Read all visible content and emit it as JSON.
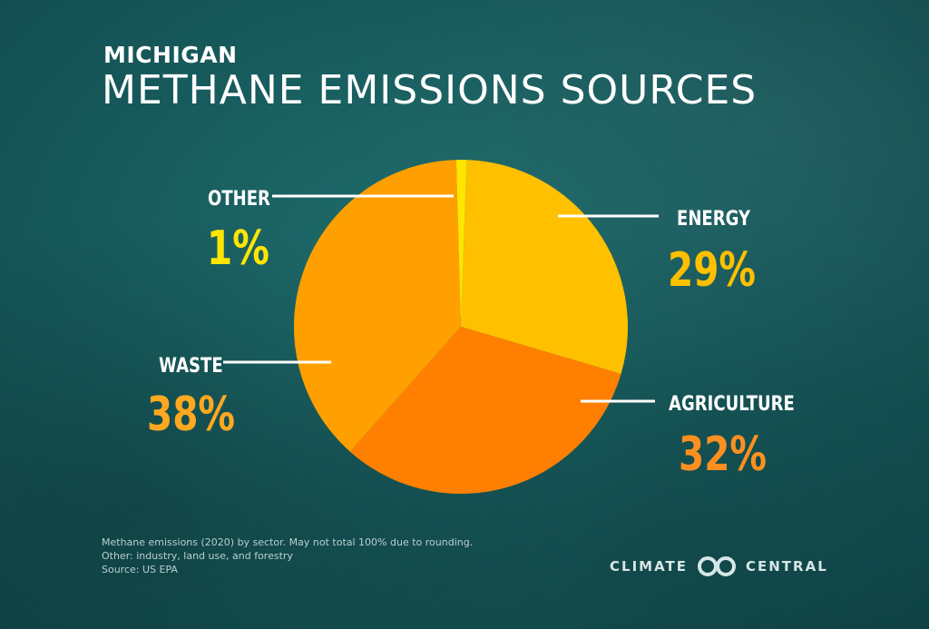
{
  "header": {
    "subtitle": "MICHIGAN",
    "title": "METHANE EMISSIONS SOURCES"
  },
  "chart_data": {
    "type": "pie",
    "title": "METHANE EMISSIONS SOURCES",
    "subtitle": "MICHIGAN",
    "slices": [
      {
        "label": "ENERGY",
        "value": 29,
        "display": "29%",
        "color": "#FFC000"
      },
      {
        "label": "AGRICULTURE",
        "value": 32,
        "display": "32%",
        "color": "#FF8000"
      },
      {
        "label": "WASTE",
        "value": 38,
        "display": "38%",
        "color": "#FFA000"
      },
      {
        "label": "OTHER",
        "value": 1,
        "display": "1%",
        "color": "#FFE600"
      }
    ],
    "label_colors": {
      "ENERGY": "#FFC000",
      "AGRICULTURE": "#FF9020",
      "WASTE": "#FFA820",
      "OTHER": "#FFE600"
    }
  },
  "footnote": {
    "line1": "Methane emissions (2020) by sector. May not total 100% due to rounding.",
    "line2": "Other: industry, land use, and forestry",
    "line3": "Source: US EPA"
  },
  "brand": {
    "left": "CLIMATE",
    "right": "CENTRAL",
    "icon": "climate-central-logo-icon"
  },
  "colors": {
    "background": "#175a5c",
    "title_text": "#ffffff",
    "leader_line": "#ffffff"
  }
}
